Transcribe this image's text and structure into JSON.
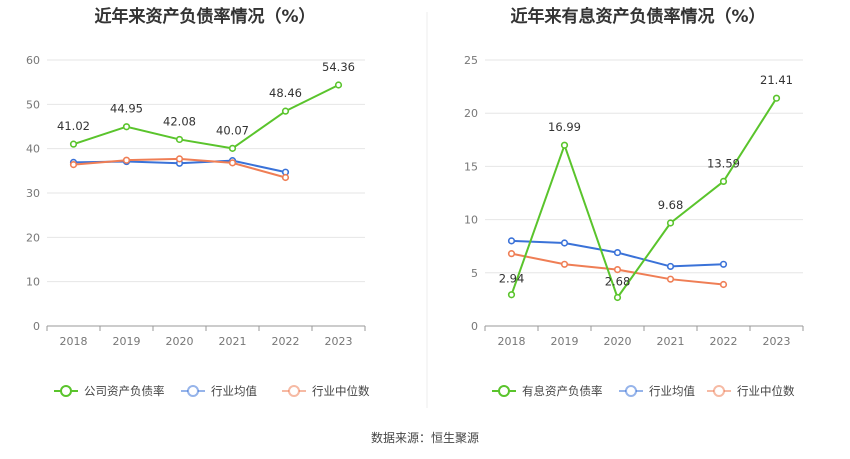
{
  "source_label": "数据来源：恒生聚源",
  "chart_data": [
    {
      "type": "line",
      "title": "近年来资产负债率情况（%）",
      "categories": [
        "2018",
        "2019",
        "2020",
        "2021",
        "2022",
        "2023"
      ],
      "ylim": [
        0,
        60
      ],
      "yticks": [
        0,
        10,
        20,
        30,
        40,
        50,
        60
      ],
      "series": [
        {
          "name": "公司资产负债率",
          "color": "#5ac42c",
          "values": [
            41.02,
            44.95,
            42.08,
            40.07,
            48.46,
            54.36
          ],
          "labels": [
            "41.02",
            "44.95",
            "42.08",
            "40.07",
            "48.46",
            "54.36"
          ]
        },
        {
          "name": "行业均值",
          "color": "#3a72d8",
          "values": [
            36.9,
            37.1,
            36.7,
            37.3,
            34.7,
            null
          ]
        },
        {
          "name": "行业中位数",
          "color": "#ef7e55",
          "values": [
            36.4,
            37.4,
            37.7,
            36.8,
            33.5,
            null
          ]
        }
      ]
    },
    {
      "type": "line",
      "title": "近年来有息资产负债率情况（%）",
      "categories": [
        "2018",
        "2019",
        "2020",
        "2021",
        "2022",
        "2023"
      ],
      "ylim": [
        0,
        25
      ],
      "yticks": [
        0,
        5,
        10,
        15,
        20,
        25
      ],
      "series": [
        {
          "name": "有息资产负债率",
          "color": "#5ac42c",
          "values": [
            2.94,
            16.99,
            2.68,
            9.68,
            13.59,
            21.41
          ],
          "labels": [
            "2.94",
            "16.99",
            "2.68",
            "9.68",
            "13.59",
            "21.41"
          ]
        },
        {
          "name": "行业均值",
          "color": "#3a72d8",
          "values": [
            8.0,
            7.8,
            6.9,
            5.6,
            5.8,
            null
          ]
        },
        {
          "name": "行业中位数",
          "color": "#ef7e55",
          "values": [
            6.8,
            5.8,
            5.3,
            4.4,
            3.9,
            null
          ]
        }
      ]
    }
  ]
}
